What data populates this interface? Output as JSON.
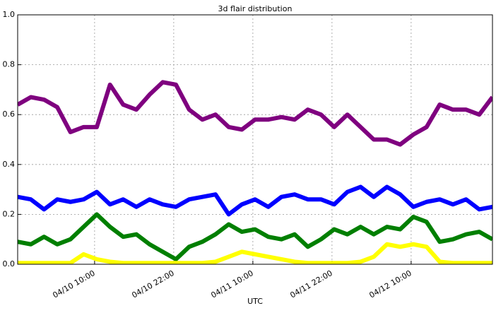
{
  "chart_data": {
    "type": "line",
    "title": "3d flair distribution",
    "x_label": "UTC",
    "x": [
      "04/09 22:20",
      "04/10 00:20",
      "04/10 02:20",
      "04/10 04:20",
      "04/10 06:20",
      "04/10 08:20",
      "04/10 10:20",
      "04/10 12:20",
      "04/10 14:20",
      "04/10 16:20",
      "04/10 18:20",
      "04/10 20:20",
      "04/10 22:20",
      "04/11 00:20",
      "04/11 02:20",
      "04/11 04:20",
      "04/11 06:20",
      "04/11 08:20",
      "04/11 10:20",
      "04/11 12:20",
      "04/11 14:20",
      "04/11 16:20",
      "04/11 18:20",
      "04/11 20:20",
      "04/11 22:20",
      "04/12 00:20",
      "04/12 02:20",
      "04/12 04:20",
      "04/12 06:20",
      "04/12 08:20",
      "04/12 10:20",
      "04/12 12:20",
      "04/12 14:20",
      "04/12 16:20",
      "04/12 18:20",
      "04/12 20:20",
      "04/12 22:20"
    ],
    "series": [
      {
        "color": "#7f007f",
        "values": [
          0.64,
          0.67,
          0.66,
          0.63,
          0.53,
          0.55,
          0.55,
          0.72,
          0.64,
          0.62,
          0.68,
          0.73,
          0.72,
          0.62,
          0.58,
          0.6,
          0.55,
          0.54,
          0.58,
          0.58,
          0.59,
          0.58,
          0.62,
          0.6,
          0.55,
          0.6,
          0.55,
          0.5,
          0.5,
          0.48,
          0.52,
          0.55,
          0.64,
          0.62,
          0.62,
          0.6,
          0.67
        ]
      },
      {
        "color": "#0000ff",
        "values": [
          0.27,
          0.26,
          0.22,
          0.26,
          0.25,
          0.26,
          0.29,
          0.24,
          0.26,
          0.23,
          0.26,
          0.24,
          0.23,
          0.26,
          0.27,
          0.28,
          0.2,
          0.24,
          0.26,
          0.23,
          0.27,
          0.28,
          0.26,
          0.26,
          0.24,
          0.29,
          0.31,
          0.27,
          0.31,
          0.28,
          0.23,
          0.25,
          0.26,
          0.24,
          0.26,
          0.22,
          0.23
        ]
      },
      {
        "color": "#007f00",
        "values": [
          0.09,
          0.08,
          0.11,
          0.08,
          0.1,
          0.15,
          0.2,
          0.15,
          0.11,
          0.12,
          0.08,
          0.05,
          0.02,
          0.07,
          0.09,
          0.12,
          0.16,
          0.13,
          0.14,
          0.11,
          0.1,
          0.12,
          0.07,
          0.1,
          0.14,
          0.12,
          0.15,
          0.12,
          0.15,
          0.14,
          0.19,
          0.17,
          0.09,
          0.1,
          0.12,
          0.13,
          0.1
        ]
      },
      {
        "color": "#ffff00",
        "values": [
          0.005,
          0.005,
          0.005,
          0.005,
          0.005,
          0.04,
          0.02,
          0.01,
          0.005,
          0.005,
          0.005,
          0.005,
          0.005,
          0.005,
          0.005,
          0.01,
          0.03,
          0.05,
          0.04,
          0.03,
          0.02,
          0.01,
          0.005,
          0.005,
          0.005,
          0.005,
          0.01,
          0.03,
          0.08,
          0.07,
          0.08,
          0.07,
          0.01,
          0.005,
          0.005,
          0.005,
          0.005
        ]
      }
    ],
    "xlim": [
      "04/09 22:20",
      "04/12 22:20"
    ],
    "xticks": [
      "04/10 10:00",
      "04/10 22:00",
      "04/11 10:00",
      "04/11 22:00",
      "04/12 10:00"
    ],
    "ylim": [
      0,
      1
    ],
    "yticks": [
      {
        "value": 0,
        "label": "0.0"
      },
      0.2,
      0.4,
      0.6,
      0.8,
      {
        "value": 1,
        "label": "1.0"
      }
    ],
    "grid": true
  }
}
